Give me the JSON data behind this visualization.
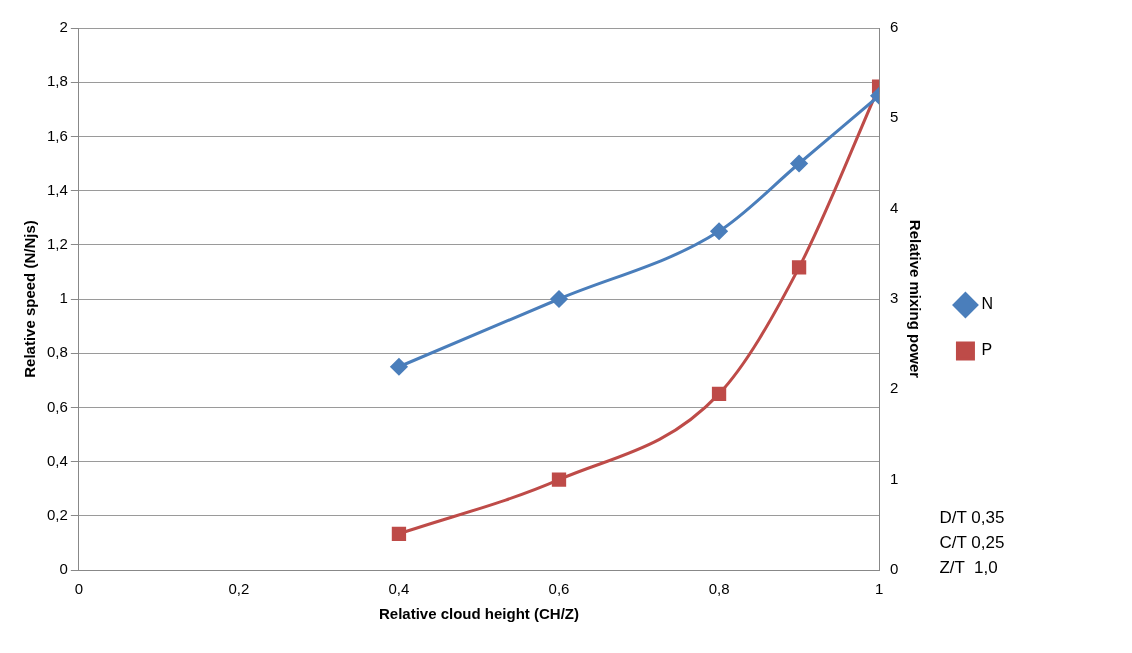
{
  "chart_data": {
    "type": "line",
    "xlabel": "Relative cloud height (CH/Z)",
    "ylabel": "Relative speed (N/Njs)",
    "y2label": "Relative mixing power",
    "x": [
      0.4,
      0.6,
      0.8,
      0.9,
      1.0
    ],
    "series": [
      {
        "name": "N",
        "color": "#4a7ebb",
        "marker": "diamond",
        "values": [
          0.75,
          1.0,
          1.25,
          1.5,
          1.75
        ]
      },
      {
        "name": "P",
        "color": "#be4b48",
        "marker": "square",
        "axis": "y2",
        "values": [
          0.4,
          1.0,
          1.95,
          3.35,
          5.35
        ]
      }
    ],
    "xlim": [
      0,
      1
    ],
    "xticks": [
      0,
      {
        "value": 0.2,
        "label": "0,2"
      },
      {
        "value": 0.4,
        "label": "0,4"
      },
      {
        "value": 0.6,
        "label": "0,6"
      },
      {
        "value": 0.8,
        "label": "0,8"
      },
      1
    ],
    "ylim": [
      0,
      2
    ],
    "yticks": [
      0,
      {
        "value": 0.2,
        "label": "0,2"
      },
      {
        "value": 0.4,
        "label": "0,4"
      },
      {
        "value": 0.6,
        "label": "0,6"
      },
      {
        "value": 0.8,
        "label": "0,8"
      },
      1,
      {
        "value": 1.2,
        "label": "1,2"
      },
      {
        "value": 1.4,
        "label": "1,4"
      },
      {
        "value": 1.6,
        "label": "1,6"
      },
      {
        "value": 1.8,
        "label": "1,8"
      },
      2
    ],
    "y2lim": [
      0,
      6
    ],
    "y2ticks": [
      0,
      1,
      2,
      3,
      4,
      5,
      6
    ],
    "grid": "y",
    "legend": "right",
    "line_style": "solid",
    "annotations": [
      "D/T 0,35",
      "C/T 0,25",
      "Z/T  1,0"
    ]
  }
}
